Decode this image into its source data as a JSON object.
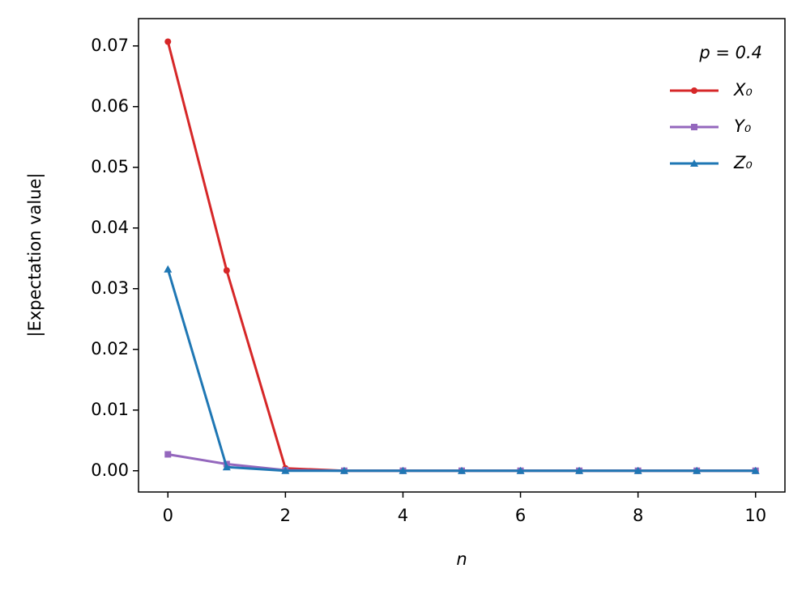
{
  "chart_data": {
    "type": "line",
    "x": [
      0,
      1,
      2,
      3,
      4,
      5,
      6,
      7,
      8,
      9,
      10
    ],
    "x_label": "n",
    "y_label": "|Expectation value|",
    "legend_title": "p = 0.4",
    "legend_position": "upper right",
    "series": [
      {
        "name": "X₀",
        "color": "#d62728",
        "marker": "circle",
        "values": [
          0.0707,
          0.033,
          0.0004,
          0.0,
          0.0,
          0.0,
          0.0,
          0.0,
          0.0,
          0.0,
          0.0
        ]
      },
      {
        "name": "Y₀",
        "color": "#9467bd",
        "marker": "square",
        "values": [
          0.0027,
          0.0011,
          0.0001,
          0.0,
          0.0,
          0.0,
          0.0,
          0.0,
          0.0,
          0.0,
          0.0
        ]
      },
      {
        "name": "Z₀",
        "color": "#1f77b4",
        "marker": "triangle",
        "values": [
          0.0332,
          0.0006,
          0.0,
          0.0,
          0.0,
          0.0,
          0.0,
          0.0,
          0.0,
          0.0,
          0.0
        ]
      }
    ],
    "xlim": [
      -0.5,
      10.5
    ],
    "ylim": [
      -0.0035,
      0.0745
    ],
    "xticks": [
      0,
      2,
      4,
      6,
      8,
      10
    ],
    "yticks": [
      {
        "value": 0,
        "label": "0.00"
      },
      {
        "value": 0.01,
        "label": "0.01"
      },
      {
        "value": 0.02,
        "label": "0.02"
      },
      {
        "value": 0.03,
        "label": "0.03"
      },
      {
        "value": 0.04,
        "label": "0.04"
      },
      {
        "value": 0.05,
        "label": "0.05"
      },
      {
        "value": 0.06,
        "label": "0.06"
      },
      {
        "value": 0.07,
        "label": "0.07"
      }
    ],
    "grid": false
  }
}
